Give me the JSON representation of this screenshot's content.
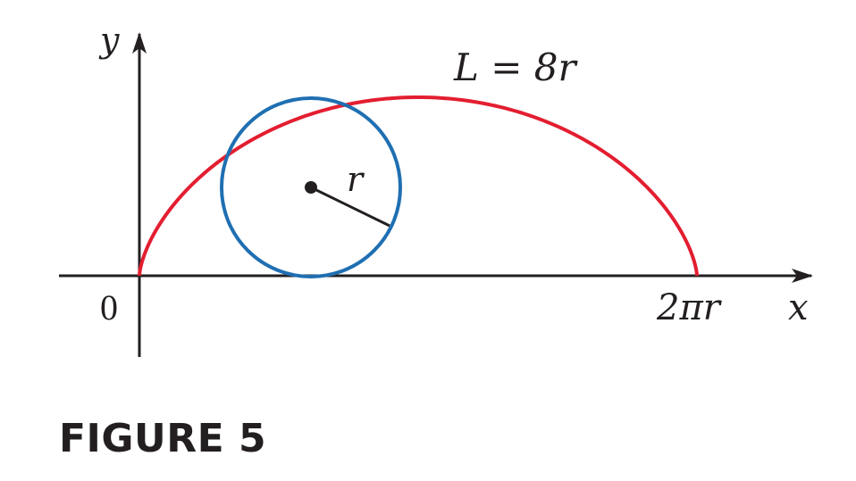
{
  "figure": {
    "caption": "FIGURE 5",
    "curve_label": "L = 8r",
    "radius_label": "r",
    "origin_label": "0",
    "x_end_label": "2πr",
    "x_axis_label": "x",
    "y_axis_label": "y"
  },
  "colors": {
    "cycloid": "#e31e30",
    "circle": "#1f6fb2",
    "axes": "#231f20",
    "radius": "#231f20"
  },
  "cycloid_params": {
    "t_start": 0,
    "t_end": 6.2832,
    "description_formula": "x = r(t - sin t), y = r(1 - cos t)"
  },
  "circle_params": {
    "rolling_angle_t": 1.85,
    "radius_angle_deg": -28
  }
}
